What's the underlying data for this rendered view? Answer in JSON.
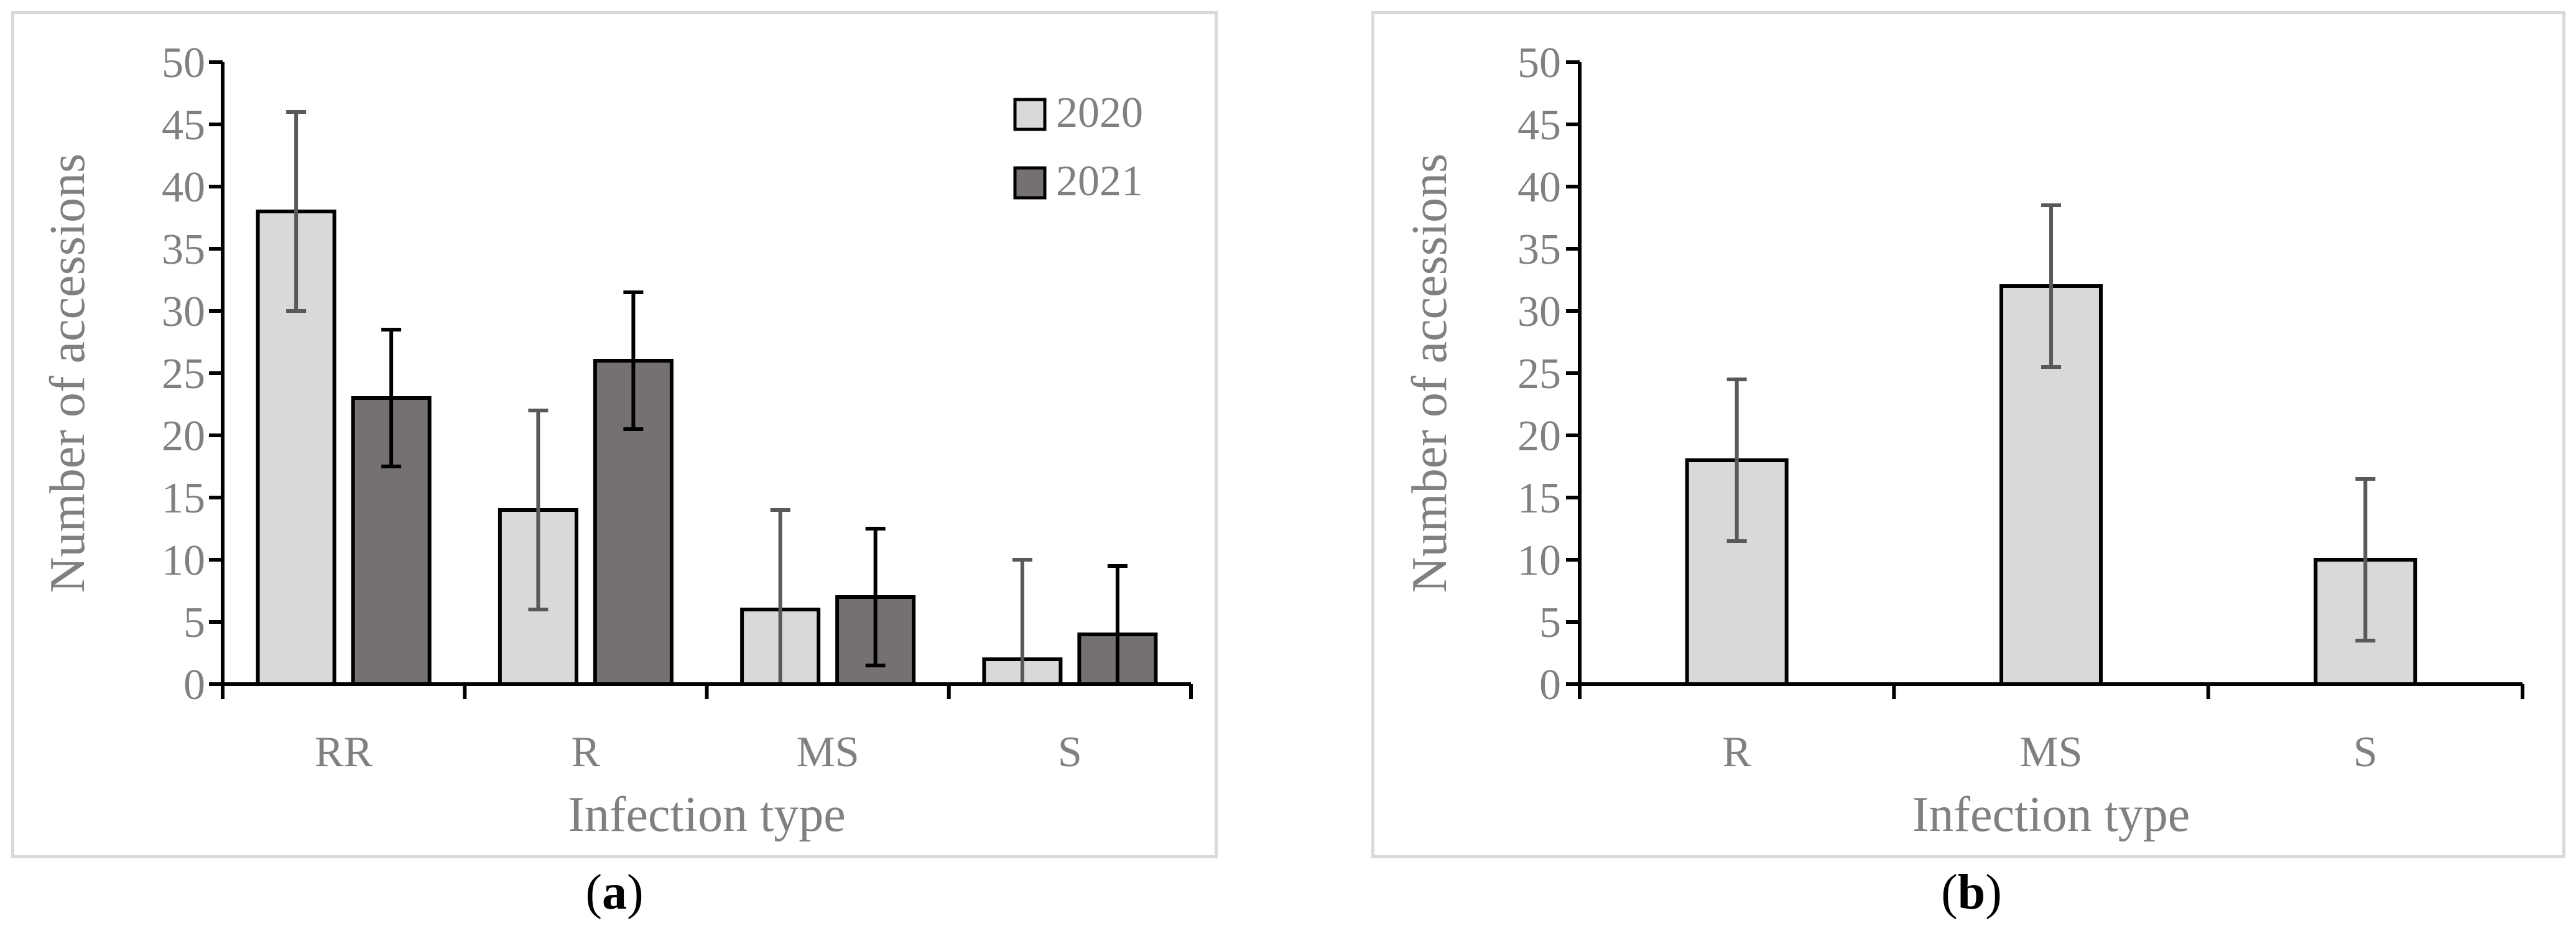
{
  "chart_data": [
    {
      "panel": "a",
      "type": "bar",
      "categories": [
        "RR",
        "R",
        "MS",
        "S"
      ],
      "series": [
        {
          "name": "2020",
          "values": [
            38,
            14,
            6,
            2
          ],
          "errors": [
            8,
            8,
            8,
            8
          ],
          "color": "#d9d9d9",
          "error_color": "#595959"
        },
        {
          "name": "2021",
          "values": [
            23,
            26,
            7,
            4
          ],
          "errors": [
            5.5,
            5.5,
            5.5,
            5.5
          ],
          "color": "#767171",
          "error_color": "#000000"
        }
      ],
      "xlabel": "Infection type",
      "ylabel": "Number of accessions",
      "ylim": [
        0,
        50
      ],
      "yticks": [
        "0",
        "5",
        "10",
        "15",
        "20",
        "25",
        "30",
        "35",
        "40",
        "45",
        "50"
      ],
      "legend": "top-right",
      "grid": false
    },
    {
      "panel": "b",
      "type": "bar",
      "categories": [
        "R",
        "MS",
        "S"
      ],
      "series": [
        {
          "name": "",
          "values": [
            18,
            32,
            10
          ],
          "errors": [
            6.5,
            6.5,
            6.5
          ],
          "color": "#d9d9d9",
          "error_color": "#595959"
        }
      ],
      "xlabel": "Infection type",
      "ylabel": "Number of accessions",
      "ylim": [
        0,
        50
      ],
      "yticks": [
        "0",
        "5",
        "10",
        "15",
        "20",
        "25",
        "30",
        "35",
        "40",
        "45",
        "50"
      ],
      "legend": "none",
      "grid": false
    }
  ],
  "captions": {
    "a": "a",
    "b": "b"
  },
  "colors": {
    "axis": "#000000",
    "text": "#808080",
    "border": "#d9d9d9"
  }
}
